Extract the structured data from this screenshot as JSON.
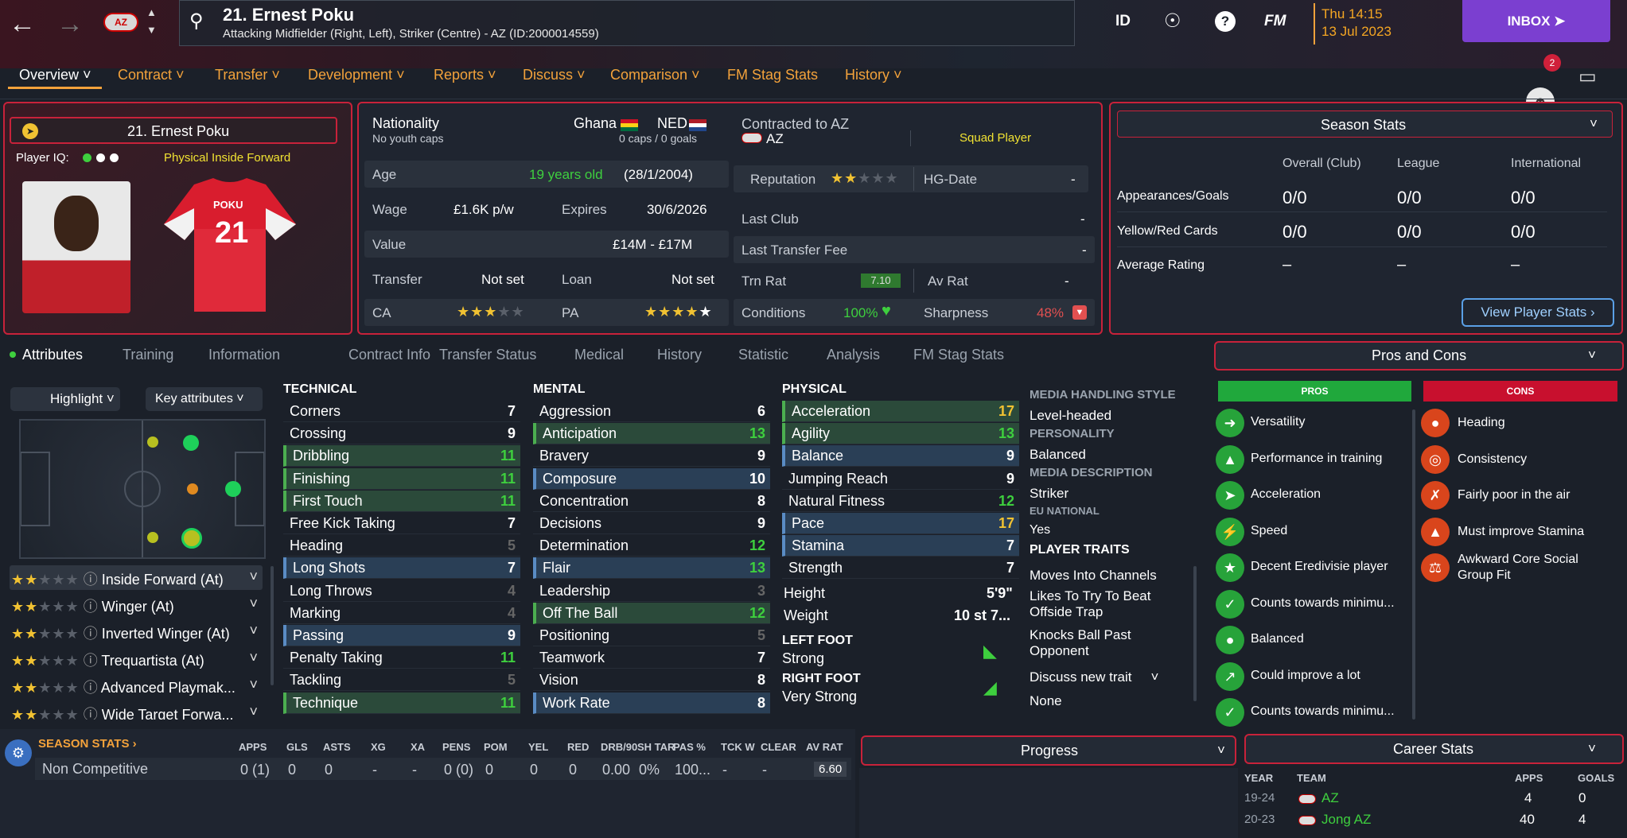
{
  "topbar": {
    "player_name": "21. Ernest Poku",
    "player_sub": "Attacking Midfielder (Right, Left), Striker (Centre) - AZ (ID:2000014559)",
    "club_badge": "AZ",
    "icons": [
      "ID",
      "FM"
    ],
    "time": "Thu 14:15",
    "date": "13 Jul 2023",
    "inbox_label": "INBOX",
    "notif_count": "2"
  },
  "tabs": [
    "Overview",
    "Contract",
    "Transfer",
    "Development",
    "Reports",
    "Discuss",
    "Comparison",
    "FM Stag Stats",
    "History"
  ],
  "profile": {
    "name": "21. Ernest Poku",
    "iq_label": "Player IQ:",
    "role": "Physical Inside Forward",
    "shirt_name": "POKU",
    "shirt_number": "21"
  },
  "info": {
    "nationality_label": "Nationality",
    "youth_caps": "No youth caps",
    "nation1": "Ghana",
    "nation2": "NED",
    "caps": "0 caps / 0 goals",
    "age_label": "Age",
    "age_value": "19 years old",
    "dob": "(28/1/2004)",
    "wage_label": "Wage",
    "wage_value": "£1.6K p/w",
    "expires_label": "Expires",
    "expires_value": "30/6/2026",
    "value_label": "Value",
    "value_value": "£14M - £17M",
    "transfer_label": "Transfer",
    "transfer_value": "Not set",
    "loan_label": "Loan",
    "loan_value": "Not set",
    "ca_label": "CA",
    "ca_stars": 2.5,
    "pa_label": "PA",
    "pa_stars": 5,
    "contracted_label": "Contracted to AZ",
    "club": "AZ",
    "squad_status": "Squad Player",
    "reputation_label": "Reputation",
    "reputation_stars": 1.5,
    "hg_label": "HG-Date",
    "hg_value": "-",
    "last_club_label": "Last Club",
    "last_club_value": "-",
    "last_fee_label": "Last Transfer Fee",
    "last_fee_value": "-",
    "trn_rat_label": "Trn Rat",
    "trn_rat_value": "7.10",
    "av_rat_label": "Av Rat",
    "av_rat_value": "-",
    "conditions_label": "Conditions",
    "conditions_value": "100%",
    "sharpness_label": "Sharpness",
    "sharpness_value": "48%"
  },
  "season_stats_panel": {
    "title": "Season Stats",
    "cols": [
      "Overall (Club)",
      "League",
      "International"
    ],
    "rows": [
      {
        "label": "Appearances/Goals",
        "vals": [
          "0/0",
          "0/0",
          "0/0"
        ]
      },
      {
        "label": "Yellow/Red Cards",
        "vals": [
          "0/0",
          "0/0",
          "0/0"
        ]
      },
      {
        "label": "Average Rating",
        "vals": [
          "–",
          "–",
          "–"
        ]
      }
    ],
    "button": "View Player Stats"
  },
  "subtabs": [
    "Attributes",
    "Training",
    "Information",
    "Contract Info",
    "Transfer Status",
    "Medical",
    "History",
    "Statistic",
    "Analysis",
    "FM Stag Stats"
  ],
  "attr_controls": {
    "highlight": "Highlight",
    "key": "Key attributes"
  },
  "roles": [
    {
      "name": "Inside Forward (At)",
      "stars": 2.5
    },
    {
      "name": "Winger (At)",
      "stars": 2.5
    },
    {
      "name": "Inverted Winger (At)",
      "stars": 2.5
    },
    {
      "name": "Trequartista (At)",
      "stars": 2
    },
    {
      "name": "Advanced Playmak...",
      "stars": 2
    },
    {
      "name": "Wide Target Forwa...",
      "stars": 1.5
    }
  ],
  "technical": {
    "title": "TECHNICAL",
    "items": [
      {
        "n": "Corners",
        "v": "7",
        "c": "",
        "h": ""
      },
      {
        "n": "Crossing",
        "v": "9",
        "c": "",
        "h": ""
      },
      {
        "n": "Dribbling",
        "v": "11",
        "c": "g",
        "h": "hl"
      },
      {
        "n": "Finishing",
        "v": "11",
        "c": "g",
        "h": "hl"
      },
      {
        "n": "First Touch",
        "v": "11",
        "c": "g",
        "h": "hl"
      },
      {
        "n": "Free Kick Taking",
        "v": "7",
        "c": "",
        "h": ""
      },
      {
        "n": "Heading",
        "v": "5",
        "c": "d",
        "h": ""
      },
      {
        "n": "Long Shots",
        "v": "7",
        "c": "",
        "h": "hb"
      },
      {
        "n": "Long Throws",
        "v": "4",
        "c": "d",
        "h": ""
      },
      {
        "n": "Marking",
        "v": "4",
        "c": "d",
        "h": ""
      },
      {
        "n": "Passing",
        "v": "9",
        "c": "",
        "h": "hb"
      },
      {
        "n": "Penalty Taking",
        "v": "11",
        "c": "g",
        "h": ""
      },
      {
        "n": "Tackling",
        "v": "5",
        "c": "d",
        "h": ""
      },
      {
        "n": "Technique",
        "v": "11",
        "c": "g",
        "h": "hl"
      }
    ]
  },
  "mental": {
    "title": "MENTAL",
    "items": [
      {
        "n": "Aggression",
        "v": "6",
        "c": "",
        "h": ""
      },
      {
        "n": "Anticipation",
        "v": "13",
        "c": "g",
        "h": "hl"
      },
      {
        "n": "Bravery",
        "v": "9",
        "c": "",
        "h": ""
      },
      {
        "n": "Composure",
        "v": "10",
        "c": "",
        "h": "hb"
      },
      {
        "n": "Concentration",
        "v": "8",
        "c": "",
        "h": ""
      },
      {
        "n": "Decisions",
        "v": "9",
        "c": "",
        "h": ""
      },
      {
        "n": "Determination",
        "v": "12",
        "c": "g",
        "h": ""
      },
      {
        "n": "Flair",
        "v": "13",
        "c": "g",
        "h": "hb"
      },
      {
        "n": "Leadership",
        "v": "3",
        "c": "d",
        "h": ""
      },
      {
        "n": "Off The Ball",
        "v": "12",
        "c": "g",
        "h": "hl"
      },
      {
        "n": "Positioning",
        "v": "5",
        "c": "d",
        "h": ""
      },
      {
        "n": "Teamwork",
        "v": "7",
        "c": "",
        "h": ""
      },
      {
        "n": "Vision",
        "v": "8",
        "c": "",
        "h": ""
      },
      {
        "n": "Work Rate",
        "v": "8",
        "c": "",
        "h": "hb"
      }
    ]
  },
  "physical": {
    "title": "PHYSICAL",
    "items": [
      {
        "n": "Acceleration",
        "v": "17",
        "c": "y",
        "h": "hl"
      },
      {
        "n": "Agility",
        "v": "13",
        "c": "g",
        "h": "hl"
      },
      {
        "n": "Balance",
        "v": "9",
        "c": "",
        "h": "hb"
      },
      {
        "n": "Jumping Reach",
        "v": "9",
        "c": "",
        "h": ""
      },
      {
        "n": "Natural Fitness",
        "v": "12",
        "c": "g",
        "h": ""
      },
      {
        "n": "Pace",
        "v": "17",
        "c": "y",
        "h": "hb"
      },
      {
        "n": "Stamina",
        "v": "7",
        "c": "",
        "h": "hb"
      },
      {
        "n": "Strength",
        "v": "7",
        "c": "",
        "h": ""
      }
    ],
    "height_label": "Height",
    "height_value": "5'9\"",
    "weight_label": "Weight",
    "weight_value": "10 st 7...",
    "left_foot_label": "LEFT FOOT",
    "left_foot_value": "Strong",
    "right_foot_label": "RIGHT FOOT",
    "right_foot_value": "Very Strong"
  },
  "media": {
    "mh_label": "MEDIA HANDLING STYLE",
    "mh_value": "Level-headed",
    "pers_label": "PERSONALITY",
    "pers_value": "Balanced",
    "desc_label": "MEDIA DESCRIPTION",
    "desc_value": "Striker",
    "eu_label": "EU NATIONAL",
    "eu_value": "Yes",
    "traits_label": "PLAYER TRAITS",
    "traits": [
      "Moves Into Channels",
      "Likes To Try To Beat Offside Trap",
      "Knocks Ball Past Opponent"
    ],
    "discuss": "Discuss new trait",
    "none": "None"
  },
  "proscons": {
    "title": "Pros and Cons",
    "pros_label": "PROS",
    "cons_label": "CONS",
    "pros": [
      "Versatility",
      "Performance in training",
      "Acceleration",
      "Speed",
      "Decent Eredivisie player",
      "Counts towards minimu...",
      "Balanced",
      "Could improve a lot",
      "Counts towards minimu..."
    ],
    "cons": [
      "Heading",
      "Consistency",
      "Fairly poor in the air",
      "Must improve Stamina",
      "Awkward Core Social Group Fit"
    ]
  },
  "bottom_stats": {
    "title": "SEASON STATS",
    "cols": [
      "APPS",
      "GLS",
      "ASTS",
      "XG",
      "XA",
      "PENS",
      "POM",
      "YEL",
      "RED",
      "DRB/90",
      "SH TAR",
      "PAS %",
      "TCK W",
      "CLEAR",
      "AV RAT"
    ],
    "row_label": "Non Competitive",
    "row_vals": [
      "0 (1)",
      "0",
      "0",
      "-",
      "-",
      "0 (0)",
      "0",
      "0",
      "0",
      "0.00",
      "0%",
      "100...",
      "-",
      "-",
      "6.60"
    ]
  },
  "progress_title": "Progress",
  "career": {
    "title": "Career Stats",
    "cols": [
      "YEAR",
      "TEAM",
      "APPS",
      "GOALS"
    ],
    "rows": [
      {
        "year": "19-24",
        "team": "AZ",
        "apps": "4",
        "goals": "0"
      },
      {
        "year": "20-23",
        "team": "Jong AZ",
        "apps": "40",
        "goals": "4"
      }
    ]
  },
  "colors": {
    "accent": "#f3a23b",
    "panel_border": "#c8223a",
    "green": "#3ecf3e",
    "inbox": "#7b3fd0"
  }
}
